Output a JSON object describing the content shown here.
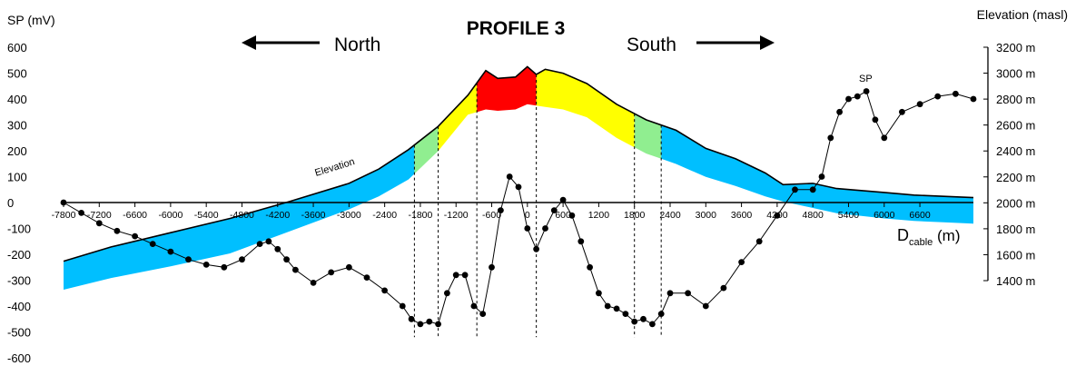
{
  "chart_data": {
    "type": "line",
    "title": "PROFILE 3",
    "direction_left": "North",
    "direction_right": "South",
    "y_left": {
      "label": "SP (mV)",
      "range": [
        -600,
        600
      ],
      "ticks": [
        "600",
        "500",
        "400",
        "300",
        "200",
        "100",
        "0",
        "-100",
        "-200",
        "-300",
        "-400",
        "-500",
        "-600"
      ]
    },
    "y_right": {
      "label": "Elevation (masl)",
      "range": [
        1400,
        3200
      ],
      "ticks": [
        "3200 m",
        "3000 m",
        "2800 m",
        "2600 m",
        "2400 m",
        "2200 m",
        "2000 m",
        "1800 m",
        "1600 m",
        "1400 m"
      ]
    },
    "x": {
      "label_main": "D",
      "label_sub": "cable",
      "label_unit": " (m)",
      "range": [
        -7800,
        7500
      ],
      "ticks": [
        "-7800",
        "-7200",
        "-6600",
        "-6000",
        "-5400",
        "-4800",
        "-4200",
        "-3600",
        "-3000",
        "-2400",
        "-1800",
        "-1200",
        "-600",
        "0",
        "600",
        "1200",
        "1800",
        "2400",
        "3000",
        "3600",
        "4200",
        "4800",
        "5400",
        "6000",
        "6600"
      ]
    },
    "annotations": {
      "elevation_label": "Elevation",
      "sp_label": "SP"
    },
    "colors": {
      "sp_series": "#000000",
      "band_blue": "#00bfff",
      "band_green": "#90ee90",
      "band_yellow": "#ffff00",
      "band_red": "#ff0000"
    },
    "zones": [
      {
        "color": "blue",
        "x": [
          -7800,
          -1900
        ]
      },
      {
        "color": "green",
        "x": [
          -1900,
          -1500
        ]
      },
      {
        "color": "yellow",
        "x": [
          -1500,
          -850
        ]
      },
      {
        "color": "red",
        "x": [
          -850,
          150
        ]
      },
      {
        "color": "yellow",
        "x": [
          150,
          1800
        ]
      },
      {
        "color": "green",
        "x": [
          1800,
          2250
        ]
      },
      {
        "color": "blue",
        "x": [
          2250,
          7500
        ]
      }
    ],
    "zone_boundaries": [
      -1900,
      -1500,
      -850,
      150,
      1800,
      2250
    ],
    "series": [
      {
        "name": "Elevation",
        "axis": "right",
        "x": [
          -7800,
          -7000,
          -6000,
          -5000,
          -4000,
          -3000,
          -2500,
          -2000,
          -1500,
          -1000,
          -700,
          -500,
          -200,
          0,
          150,
          300,
          600,
          1000,
          1500,
          2000,
          2500,
          3000,
          3500,
          4000,
          4300,
          4800,
          5200,
          6000,
          6500,
          7000,
          7500
        ],
        "values": [
          1550,
          1660,
          1770,
          1880,
          2010,
          2150,
          2260,
          2410,
          2590,
          2830,
          3020,
          2960,
          2970,
          3050,
          2990,
          3030,
          3000,
          2920,
          2760,
          2640,
          2560,
          2420,
          2340,
          2230,
          2140,
          2150,
          2110,
          2080,
          2060,
          2050,
          2040
        ]
      },
      {
        "name": "Elevation lower band edge",
        "axis": "right",
        "x": [
          -7800,
          -7000,
          -6000,
          -5000,
          -4000,
          -3000,
          -2500,
          -2000,
          -1500,
          -1000,
          -700,
          -500,
          -200,
          0,
          150,
          300,
          600,
          1000,
          1500,
          2000,
          2500,
          3000,
          3500,
          4000,
          4300,
          4800,
          5200,
          6000,
          6500,
          7000,
          7500
        ],
        "values": [
          1330,
          1420,
          1510,
          1610,
          1780,
          1950,
          2050,
          2180,
          2400,
          2680,
          2720,
          2710,
          2720,
          2760,
          2750,
          2740,
          2720,
          2660,
          2500,
          2380,
          2300,
          2200,
          2130,
          2050,
          2010,
          1960,
          1920,
          1880,
          1860,
          1850,
          1840
        ]
      },
      {
        "name": "SP",
        "axis": "left",
        "x": [
          -7800,
          -7500,
          -7200,
          -6900,
          -6600,
          -6300,
          -6000,
          -5700,
          -5400,
          -5100,
          -4800,
          -4500,
          -4350,
          -4200,
          -4050,
          -3900,
          -3600,
          -3300,
          -3000,
          -2700,
          -2400,
          -2100,
          -1950,
          -1800,
          -1650,
          -1500,
          -1350,
          -1200,
          -1050,
          -900,
          -750,
          -600,
          -450,
          -300,
          -150,
          0,
          150,
          300,
          450,
          600,
          750,
          900,
          1050,
          1200,
          1350,
          1500,
          1650,
          1800,
          1950,
          2100,
          2250,
          2400,
          2700,
          3000,
          3300,
          3600,
          3900,
          4200,
          4500,
          4800,
          4950,
          5100,
          5250,
          5400,
          5550,
          5700,
          5850,
          6000,
          6300,
          6600,
          6900,
          7200,
          7500
        ],
        "values": [
          0,
          -40,
          -80,
          -110,
          -130,
          -160,
          -190,
          -220,
          -240,
          -250,
          -220,
          -160,
          -150,
          -180,
          -220,
          -260,
          -310,
          -270,
          -250,
          -290,
          -340,
          -400,
          -450,
          -470,
          -460,
          -470,
          -350,
          -280,
          -280,
          -400,
          -430,
          -250,
          -30,
          100,
          60,
          -100,
          -180,
          -100,
          -30,
          10,
          -50,
          -150,
          -250,
          -350,
          -400,
          -410,
          -430,
          -460,
          -450,
          -470,
          -430,
          -350,
          -350,
          -400,
          -330,
          -230,
          -150,
          -50,
          50,
          50,
          100,
          250,
          350,
          400,
          410,
          430,
          320,
          250,
          350,
          380,
          410,
          420,
          400
        ]
      }
    ]
  }
}
